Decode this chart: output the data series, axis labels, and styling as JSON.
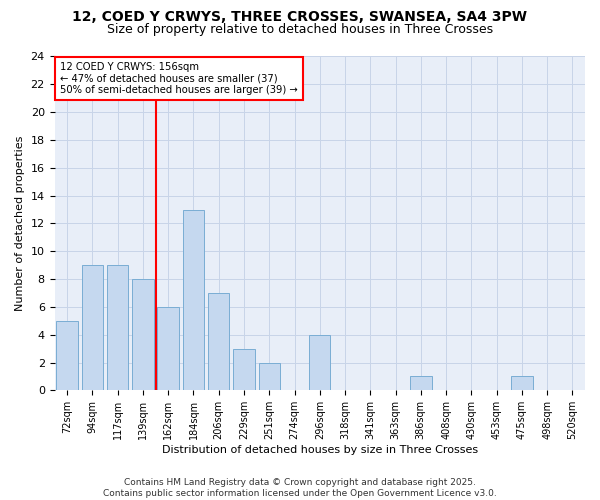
{
  "title1": "12, COED Y CRWYS, THREE CROSSES, SWANSEA, SA4 3PW",
  "title2": "Size of property relative to detached houses in Three Crosses",
  "xlabel": "Distribution of detached houses by size in Three Crosses",
  "ylabel": "Number of detached properties",
  "categories": [
    "72sqm",
    "94sqm",
    "117sqm",
    "139sqm",
    "162sqm",
    "184sqm",
    "206sqm",
    "229sqm",
    "251sqm",
    "274sqm",
    "296sqm",
    "318sqm",
    "341sqm",
    "363sqm",
    "386sqm",
    "408sqm",
    "430sqm",
    "453sqm",
    "475sqm",
    "498sqm",
    "520sqm"
  ],
  "values": [
    5,
    9,
    9,
    8,
    6,
    13,
    7,
    3,
    2,
    0,
    4,
    0,
    0,
    0,
    1,
    0,
    0,
    0,
    1,
    0,
    0
  ],
  "bar_color": "#c5d8ef",
  "bar_edge_color": "#7aadd4",
  "red_line_x": 3.5,
  "annotation_text": "12 COED Y CRWYS: 156sqm\n← 47% of detached houses are smaller (37)\n50% of semi-detached houses are larger (39) →",
  "annotation_box_color": "white",
  "annotation_box_edge_color": "red",
  "ylim": [
    0,
    24
  ],
  "yticks": [
    0,
    2,
    4,
    6,
    8,
    10,
    12,
    14,
    16,
    18,
    20,
    22,
    24
  ],
  "footer_text": "Contains HM Land Registry data © Crown copyright and database right 2025.\nContains public sector information licensed under the Open Government Licence v3.0.",
  "grid_color": "#c8d4e8",
  "background_color": "#e8eef8"
}
